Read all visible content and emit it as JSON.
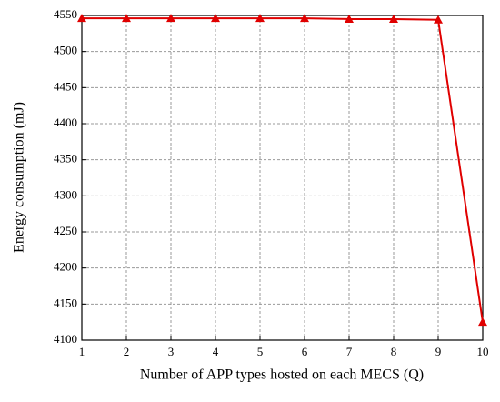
{
  "chart_data": {
    "type": "line",
    "x_label": "Number of APP types hosted on each MECS (Q)",
    "y_label": "Energy consumption (mJ)",
    "x": [
      1,
      2,
      3,
      4,
      5,
      6,
      7,
      8,
      9,
      10
    ],
    "series": [
      {
        "name": "Energy consumption",
        "color": "#e00000",
        "values": [
          4546,
          4546,
          4546,
          4546,
          4546,
          4546,
          4545,
          4545,
          4544,
          4125
        ]
      }
    ],
    "xlim": [
      1,
      10
    ],
    "xticks": [
      1,
      2,
      3,
      4,
      5,
      6,
      7,
      8,
      9,
      10
    ],
    "ylim": [
      4100,
      4550
    ],
    "yticks": [
      4100,
      4150,
      4200,
      4250,
      4300,
      4350,
      4400,
      4450,
      4500,
      4550
    ],
    "grid": true
  }
}
